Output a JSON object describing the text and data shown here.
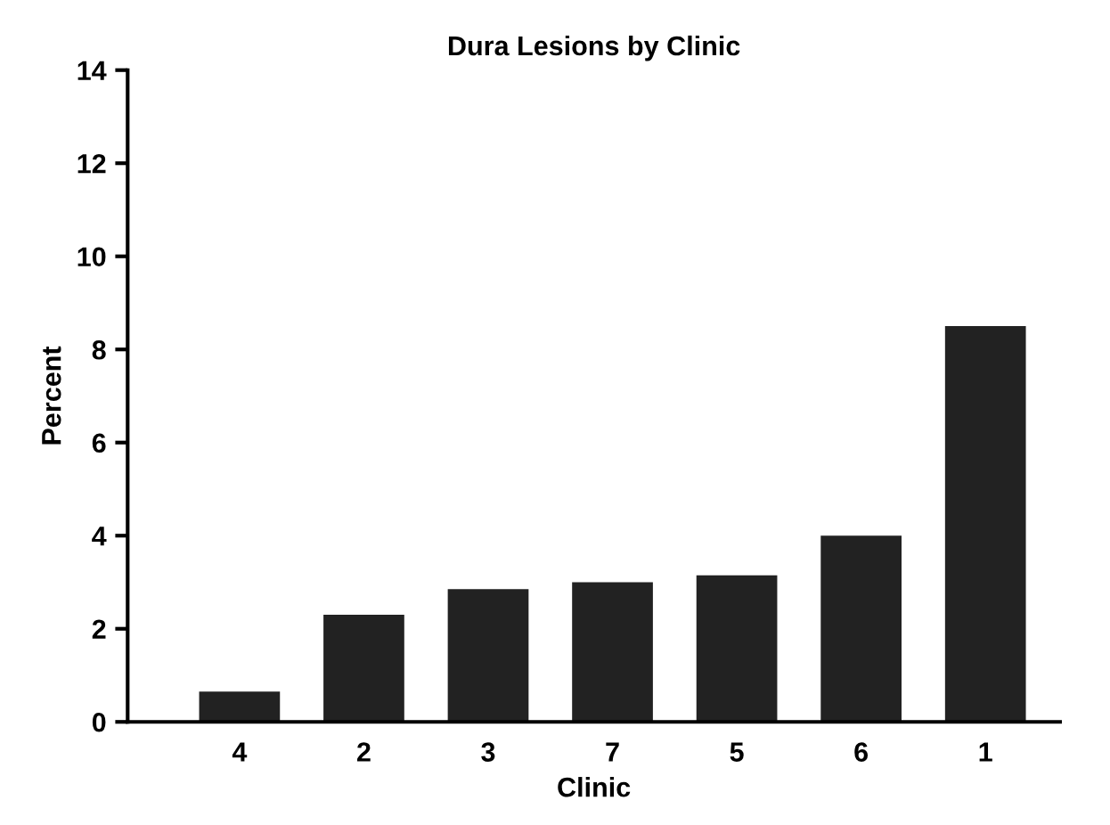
{
  "chart_data": {
    "type": "bar",
    "title": "Dura Lesions by Clinic",
    "xlabel": "Clinic",
    "ylabel": "Percent",
    "categories": [
      "4",
      "2",
      "3",
      "7",
      "5",
      "6",
      "1"
    ],
    "values": [
      0.65,
      2.3,
      2.85,
      3.0,
      3.15,
      4.0,
      8.5
    ],
    "color": "#222222",
    "ylim": [
      0,
      14
    ],
    "yticks": [
      0,
      2,
      4,
      6,
      8,
      10,
      12,
      14
    ],
    "grid": false,
    "legend": false
  }
}
